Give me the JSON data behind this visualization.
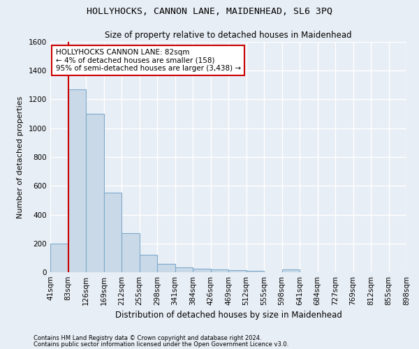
{
  "title": "HOLLYHOCKS, CANNON LANE, MAIDENHEAD, SL6 3PQ",
  "subtitle": "Size of property relative to detached houses in Maidenhead",
  "xlabel": "Distribution of detached houses by size in Maidenhead",
  "ylabel": "Number of detached properties",
  "footnote1": "Contains HM Land Registry data © Crown copyright and database right 2024.",
  "footnote2": "Contains public sector information licensed under the Open Government Licence v3.0.",
  "bin_labels": [
    "41sqm",
    "83sqm",
    "126sqm",
    "169sqm",
    "212sqm",
    "255sqm",
    "298sqm",
    "341sqm",
    "384sqm",
    "426sqm",
    "469sqm",
    "512sqm",
    "555sqm",
    "598sqm",
    "641sqm",
    "684sqm",
    "727sqm",
    "769sqm",
    "812sqm",
    "855sqm",
    "898sqm"
  ],
  "bar_values": [
    200,
    1270,
    1100,
    555,
    270,
    120,
    60,
    35,
    25,
    20,
    15,
    10,
    0,
    20,
    0,
    0,
    0,
    0,
    0,
    0
  ],
  "bar_color": "#c9d9e8",
  "bar_edgecolor": "#7eaacc",
  "ylim": [
    0,
    1600
  ],
  "yticks": [
    0,
    200,
    400,
    600,
    800,
    1000,
    1200,
    1400,
    1600
  ],
  "marker_label_title": "HOLLYHOCKS CANNON LANE: 82sqm",
  "marker_label_line2": "← 4% of detached houses are smaller (158)",
  "marker_label_line3": "95% of semi-detached houses are larger (3,438) →",
  "bg_color": "#e8eef5",
  "grid_color": "#ffffff",
  "annotation_box_color": "#ffffff",
  "annotation_box_edgecolor": "#cc0000",
  "marker_line_color": "#cc0000"
}
